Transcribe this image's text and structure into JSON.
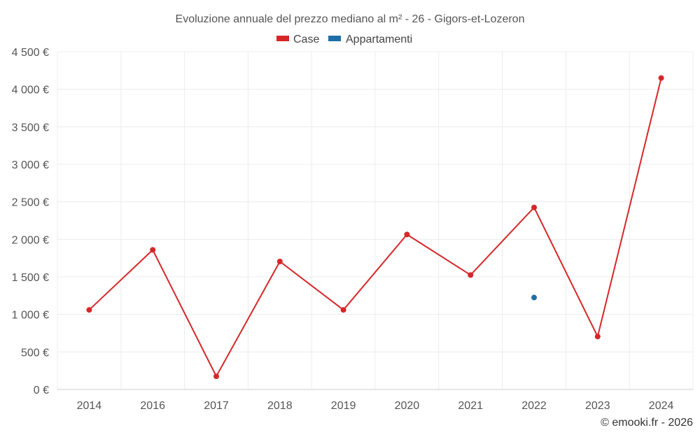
{
  "chart_data": {
    "type": "line",
    "title": "Evoluzione annuale del prezzo mediano al m² - 26 - Gigors-et-Lozeron",
    "categories": [
      "2014",
      "2016",
      "2017",
      "2018",
      "2019",
      "2020",
      "2021",
      "2022",
      "2023",
      "2024"
    ],
    "series": [
      {
        "name": "Case",
        "color": "#d62728",
        "values": [
          1060,
          1860,
          175,
          1705,
          1060,
          2065,
          1525,
          2425,
          705,
          4150
        ]
      },
      {
        "name": "Appartamenti",
        "color": "#1f6fa5",
        "values": [
          null,
          null,
          null,
          null,
          null,
          null,
          null,
          1225,
          null,
          null
        ]
      }
    ],
    "yticks": [
      0,
      500,
      1000,
      1500,
      2000,
      2500,
      3000,
      3500,
      4000,
      4500
    ],
    "ytick_labels": [
      "0 €",
      "500 €",
      "1 000 €",
      "1 500 €",
      "2 000 €",
      "2 500 €",
      "3 000 €",
      "3 500 €",
      "4 000 €",
      "4 500 €"
    ],
    "ylim": [
      0,
      4500
    ],
    "xlabel": "",
    "ylabel": "",
    "grid": true,
    "legend_position": "top-center"
  },
  "footer": "© emooki.fr - 2026"
}
